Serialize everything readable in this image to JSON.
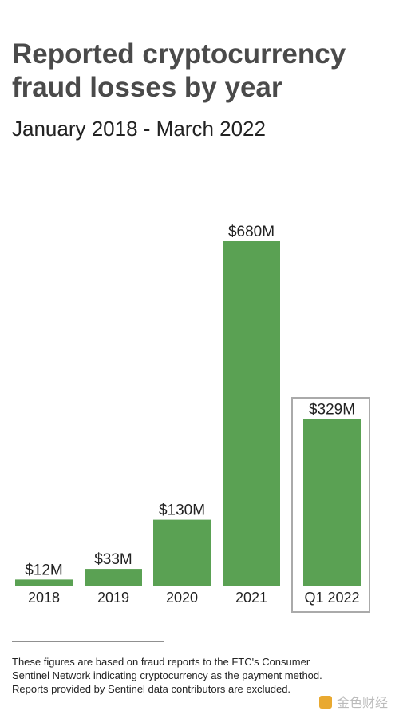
{
  "chart_data": {
    "type": "bar",
    "title": [
      "Reported cryptocurrency",
      "fraud losses by year"
    ],
    "subtitle": "January 2018 - March 2022",
    "categories": [
      "2018",
      "2019",
      "2020",
      "2021",
      "Q1 2022"
    ],
    "values": [
      12,
      33,
      130,
      680,
      329
    ],
    "value_labels": [
      "$12M",
      "$33M",
      "$130M",
      "$680M",
      "$329M"
    ],
    "color": "#5aa153",
    "note": [
      "These figures are based on fraud reports to the FTC's Consumer",
      "Sentinel Network indicating cryptocurrency as the payment method.",
      "Reports provided by Sentinel data contributors are excluded."
    ],
    "watermark": "金色财经"
  }
}
